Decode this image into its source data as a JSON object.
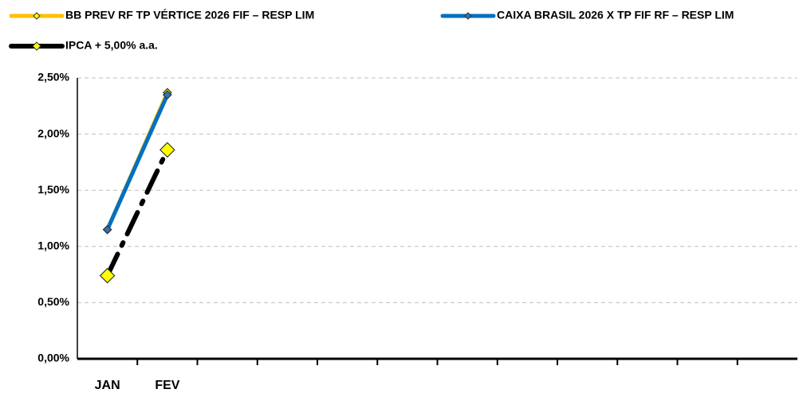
{
  "chart_data": {
    "type": "line",
    "categories": [
      "JAN",
      "FEV",
      null,
      null,
      null,
      null,
      null,
      null,
      null,
      null,
      null,
      null
    ],
    "series": [
      {
        "name": "BB PREV RF TP VÉRTICE 2026 FIF – RESP LIM",
        "color": "#ffc000",
        "marker_color": "#ffff00",
        "dashed": false,
        "values": [
          1.15,
          2.37,
          null,
          null,
          null,
          null,
          null,
          null,
          null,
          null,
          null,
          null
        ]
      },
      {
        "name": "CAIXA BRASIL 2026 X TP FIF RF – RESP LIM",
        "color": "#0070c0",
        "marker_color": "#2e75b6",
        "dashed": false,
        "values": [
          1.15,
          2.35,
          null,
          null,
          null,
          null,
          null,
          null,
          null,
          null,
          null,
          null
        ]
      },
      {
        "name": "IPCA + 5,00% a.a.",
        "color": "#000000",
        "marker_color": "#ffff00",
        "dashed": true,
        "values": [
          0.74,
          1.86,
          null,
          null,
          null,
          null,
          null,
          null,
          null,
          null,
          null,
          null
        ]
      }
    ],
    "ylim": [
      0,
      2.5
    ],
    "yticks": [
      {
        "value": 0,
        "label": "0,00%"
      },
      {
        "value": 0.5,
        "label": "0,50%"
      },
      {
        "value": 1,
        "label": "1,00%"
      },
      {
        "value": 1.5,
        "label": "1,50%"
      },
      {
        "value": 2,
        "label": "2,00%"
      },
      {
        "value": 2.5,
        "label": "2,50%"
      }
    ],
    "grid": true,
    "legend": "top"
  }
}
